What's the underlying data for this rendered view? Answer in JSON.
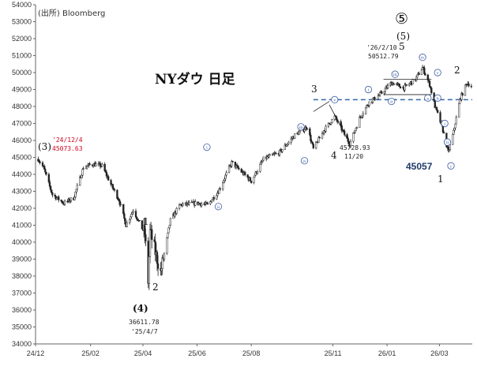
{
  "source": "(出所) Bloomberg",
  "title": "NYダウ 日足",
  "chart_data": {
    "type": "candlestick",
    "title": "NYダウ 日足",
    "ylim": [
      34000,
      54000
    ],
    "y_ticks": [
      34000,
      35000,
      36000,
      37000,
      38000,
      39000,
      40000,
      41000,
      42000,
      43000,
      44000,
      45000,
      46000,
      47000,
      48000,
      49000,
      50000,
      51000,
      52000,
      53000,
      54000
    ],
    "x_tick_labels": [
      "24/12",
      "25/02",
      "25/04",
      "25/06",
      "25/08",
      "25/11",
      "26/01",
      "26/03"
    ],
    "x_range": [
      "2024-12-01",
      "2026-04-07"
    ],
    "approx_close_path": [
      {
        "x": "2024-12-04",
        "y": 44900
      },
      {
        "x": "2024-12-10",
        "y": 44400
      },
      {
        "x": "2024-12-20",
        "y": 42800
      },
      {
        "x": "2025-01-02",
        "y": 42300
      },
      {
        "x": "2025-01-13",
        "y": 42600
      },
      {
        "x": "2025-01-24",
        "y": 44400
      },
      {
        "x": "2025-02-03",
        "y": 44600
      },
      {
        "x": "2025-02-14",
        "y": 44500
      },
      {
        "x": "2025-02-24",
        "y": 43400
      },
      {
        "x": "2025-03-05",
        "y": 42500
      },
      {
        "x": "2025-03-13",
        "y": 41000
      },
      {
        "x": "2025-03-21",
        "y": 41900
      },
      {
        "x": "2025-04-03",
        "y": 40500
      },
      {
        "x": "2025-04-07",
        "y": 37700
      },
      {
        "x": "2025-04-09",
        "y": 40600
      },
      {
        "x": "2025-04-21",
        "y": 38200
      },
      {
        "x": "2025-05-02",
        "y": 41300
      },
      {
        "x": "2025-05-13",
        "y": 42200
      },
      {
        "x": "2025-06-02",
        "y": 42300
      },
      {
        "x": "2025-06-13",
        "y": 42200
      },
      {
        "x": "2025-06-25",
        "y": 43000
      },
      {
        "x": "2025-07-10",
        "y": 44700
      },
      {
        "x": "2025-07-18",
        "y": 44300
      },
      {
        "x": "2025-08-01",
        "y": 43600
      },
      {
        "x": "2025-08-15",
        "y": 44900
      },
      {
        "x": "2025-09-02",
        "y": 45300
      },
      {
        "x": "2025-09-19",
        "y": 46300
      },
      {
        "x": "2025-10-03",
        "y": 46800
      },
      {
        "x": "2025-10-10",
        "y": 45500
      },
      {
        "x": "2025-10-22",
        "y": 46600
      },
      {
        "x": "2025-11-03",
        "y": 47400
      },
      {
        "x": "2025-11-20",
        "y": 45800
      },
      {
        "x": "2025-12-01",
        "y": 47300
      },
      {
        "x": "2025-12-11",
        "y": 48200
      },
      {
        "x": "2025-12-24",
        "y": 48700
      },
      {
        "x": "2026-01-06",
        "y": 49400
      },
      {
        "x": "2026-01-20",
        "y": 49100
      },
      {
        "x": "2026-02-02",
        "y": 49600
      },
      {
        "x": "2026-02-10",
        "y": 50300
      },
      {
        "x": "2026-02-18",
        "y": 49300
      },
      {
        "x": "2026-02-24",
        "y": 48000
      },
      {
        "x": "2026-03-04",
        "y": 46800
      },
      {
        "x": "2026-03-11",
        "y": 45300
      },
      {
        "x": "2026-03-17",
        "y": 46500
      },
      {
        "x": "2026-03-24",
        "y": 48400
      },
      {
        "x": "2026-04-01",
        "y": 49400
      },
      {
        "x": "2026-04-06",
        "y": 49200
      }
    ],
    "reference_line": {
      "y": 48400,
      "style": "dashed",
      "color": "#3366aa"
    },
    "annotations": {
      "wave3": {
        "label": "(3)",
        "date": "'24/12/4",
        "value": "45073.63"
      },
      "wave4": {
        "label": "(4)",
        "value": "36611.78",
        "date": "'25/4/7"
      },
      "wave5": {
        "label_top": "⑤",
        "label": "(5)",
        "date": "'26/2/10",
        "value": "50512.79",
        "sub": "5"
      },
      "low_1120": {
        "label": "4",
        "value": "45728.93",
        "date": "11/20"
      },
      "highlight_value": "45057",
      "small_labels": [
        "1",
        "2",
        "3",
        "1",
        "2"
      ]
    }
  },
  "colors": {
    "candle": "#222222",
    "reference_line": "#3366aa",
    "red_annotation": "#d0021b",
    "highlight_annotation": "#1f3a68",
    "circle_marker": "#3a5ba0"
  },
  "markers": {
    "circle_labels": [
      "i",
      "ii",
      "iii",
      "iv",
      "v",
      "i",
      "ii",
      "iii",
      "iv",
      "v",
      "a",
      "b",
      "c",
      "i",
      "ii"
    ]
  }
}
